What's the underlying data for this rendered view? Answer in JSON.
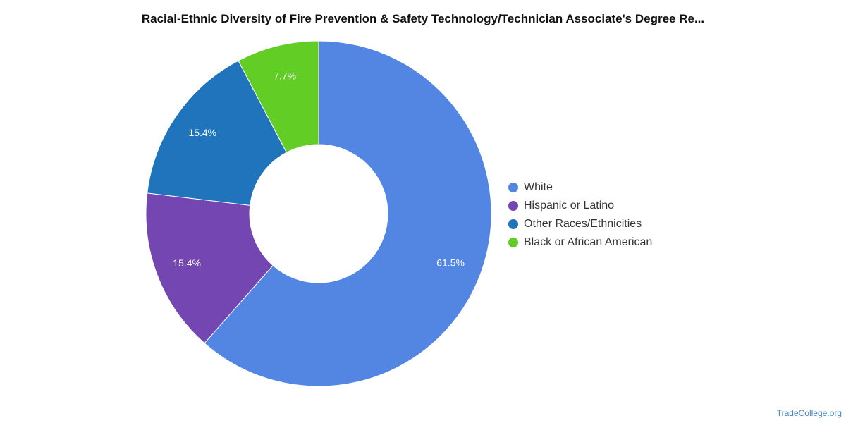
{
  "title": "Racial-Ethnic Diversity of Fire Prevention & Safety Technology/Technician Associate's Degree Re...",
  "watermark": "TradeCollege.org",
  "chart_data": {
    "type": "pie",
    "donut": true,
    "title": "Racial-Ethnic Diversity of Fire Prevention & Safety Technology/Technician Associate's Degree Re...",
    "legend_position": "right",
    "slices": [
      {
        "label": "White",
        "value": 61.5,
        "value_label": "61.5%",
        "color": "#5385e3"
      },
      {
        "label": "Hispanic or Latino",
        "value": 15.4,
        "value_label": "15.4%",
        "color": "#7446b1"
      },
      {
        "label": "Other Races/Ethnicities",
        "value": 15.4,
        "value_label": "15.4%",
        "color": "#1f74bb"
      },
      {
        "label": "Black or African American",
        "value": 7.7,
        "value_label": "7.7%",
        "color": "#62cd25"
      }
    ]
  }
}
